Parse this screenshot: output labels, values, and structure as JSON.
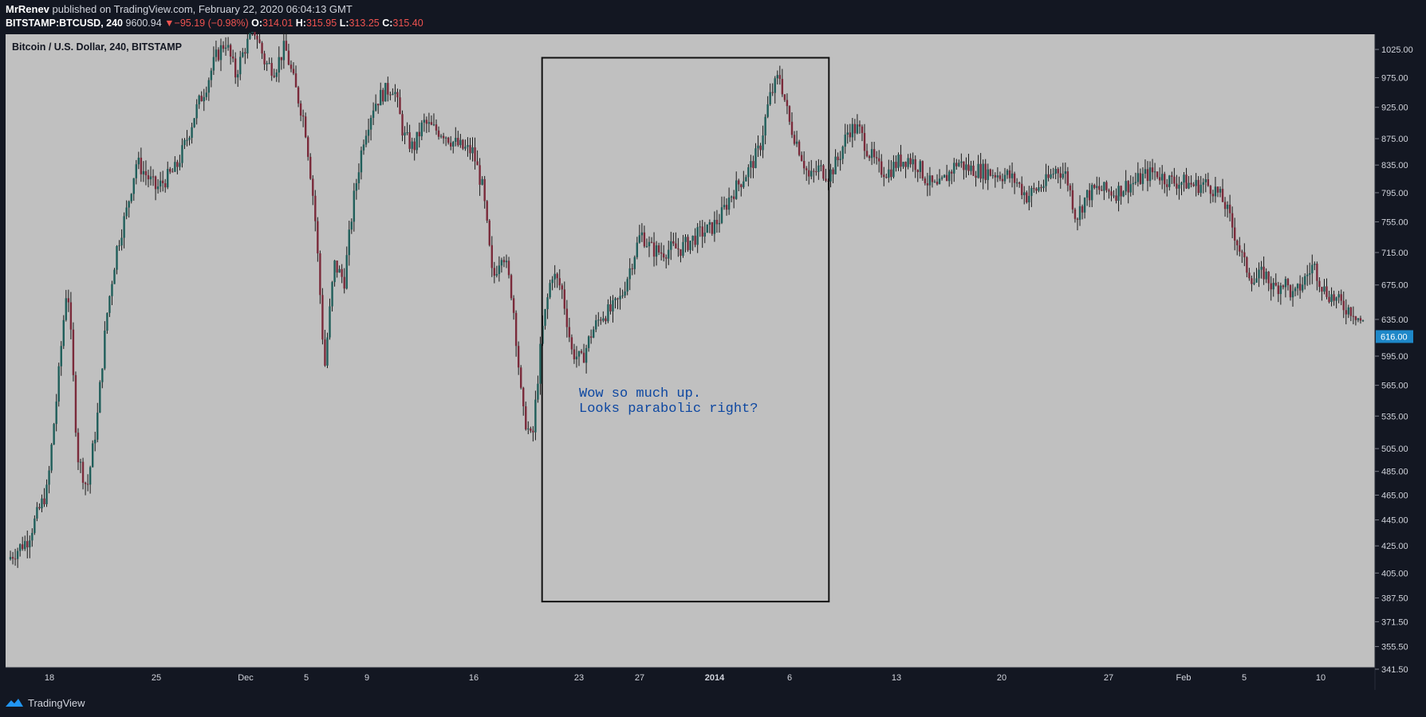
{
  "header": {
    "author": "MrRenev",
    "published_text": "published on TradingView.com, February 22, 2020 06:04:13 GMT",
    "symbol": "BITSTAMP:BTCUSD, 240",
    "last_price": "9600.94",
    "change_arrow": "▼",
    "change": "−95.19 (−0.98%)",
    "o_label": "O:",
    "o_value": "314.01",
    "h_label": "H:",
    "h_value": "315.95",
    "l_label": "L:",
    "l_value": "313.25",
    "c_label": "C:",
    "c_value": "315.40"
  },
  "footer": {
    "brand": "TradingView"
  },
  "colors": {
    "page_bg": "#131722",
    "plot_bg": "#c0c0c0",
    "candle_up": "#1f5e5a",
    "candle_down": "#7a2a3a",
    "wick": "#1a1a1a",
    "annotation_text": "#0d47a1",
    "price_tag_bg": "#1e88c9"
  },
  "chart_data": {
    "type": "candlestick",
    "title": "Bitcoin / U.S. Dollar, 240, BITSTAMP",
    "xlabel": "",
    "ylabel": "",
    "price_scale": "log",
    "ylim": [
      341.5,
      1050
    ],
    "grid": false,
    "x_ticks": [
      "18",
      "25",
      "Dec",
      "5",
      "9",
      "16",
      "23",
      "27",
      "2014",
      "6",
      "13",
      "20",
      "27",
      "Feb",
      "5",
      "10"
    ],
    "y_ticks": [
      "1025.00",
      "975.00",
      "925.00",
      "875.00",
      "835.00",
      "795.00",
      "755.00",
      "715.00",
      "675.00",
      "635.00",
      "595.00",
      "565.00",
      "535.00",
      "505.00",
      "485.00",
      "465.00",
      "445.00",
      "425.00",
      "405.00",
      "387.50",
      "371.50",
      "355.50",
      "341.50"
    ],
    "current_price_tag": "616.00",
    "price_path": [
      [
        0,
        415
      ],
      [
        2,
        430
      ],
      [
        4,
        470
      ],
      [
        5,
        560
      ],
      [
        6,
        680
      ],
      [
        7,
        500
      ],
      [
        8,
        470
      ],
      [
        9,
        530
      ],
      [
        10,
        640
      ],
      [
        11,
        720
      ],
      [
        12,
        770
      ],
      [
        13,
        840
      ],
      [
        15,
        800
      ],
      [
        17,
        830
      ],
      [
        18,
        870
      ],
      [
        19,
        920
      ],
      [
        20,
        960
      ],
      [
        21,
        1010
      ],
      [
        22,
        1040
      ],
      [
        23,
        980
      ],
      [
        24,
        1030
      ],
      [
        25,
        1060
      ],
      [
        26,
        1000
      ],
      [
        27,
        990
      ],
      [
        28,
        1030
      ],
      [
        29,
        960
      ],
      [
        30,
        900
      ],
      [
        31,
        770
      ],
      [
        32,
        580
      ],
      [
        33,
        700
      ],
      [
        34,
        680
      ],
      [
        35,
        790
      ],
      [
        36,
        880
      ],
      [
        37,
        930
      ],
      [
        38,
        950
      ],
      [
        39,
        960
      ],
      [
        40,
        880
      ],
      [
        41,
        860
      ],
      [
        42,
        900
      ],
      [
        43,
        890
      ],
      [
        44,
        885
      ],
      [
        45,
        870
      ],
      [
        46,
        860
      ],
      [
        47,
        855
      ],
      [
        48,
        800
      ],
      [
        49,
        680
      ],
      [
        50,
        720
      ],
      [
        51,
        660
      ],
      [
        52,
        540
      ],
      [
        53,
        510
      ],
      [
        54,
        620
      ],
      [
        55,
        690
      ],
      [
        56,
        670
      ],
      [
        57,
        600
      ],
      [
        58,
        590
      ],
      [
        59,
        620
      ],
      [
        60,
        640
      ],
      [
        61,
        645
      ],
      [
        62,
        660
      ],
      [
        63,
        700
      ],
      [
        64,
        740
      ],
      [
        65,
        720
      ],
      [
        66,
        715
      ],
      [
        67,
        720
      ],
      [
        68,
        720
      ],
      [
        69,
        730
      ],
      [
        70,
        740
      ],
      [
        71,
        745
      ],
      [
        72,
        760
      ],
      [
        73,
        790
      ],
      [
        74,
        810
      ],
      [
        75,
        830
      ],
      [
        76,
        860
      ],
      [
        77,
        940
      ],
      [
        78,
        980
      ],
      [
        79,
        900
      ],
      [
        80,
        860
      ],
      [
        81,
        815
      ],
      [
        82,
        830
      ],
      [
        83,
        820
      ],
      [
        84,
        845
      ],
      [
        85,
        890
      ],
      [
        86,
        890
      ],
      [
        87,
        855
      ],
      [
        88,
        830
      ],
      [
        89,
        825
      ],
      [
        90,
        840
      ],
      [
        91,
        845
      ],
      [
        92,
        835
      ],
      [
        93,
        810
      ],
      [
        94,
        800
      ],
      [
        95,
        820
      ],
      [
        96,
        840
      ],
      [
        97,
        830
      ],
      [
        98,
        828
      ],
      [
        99,
        825
      ],
      [
        100,
        822
      ],
      [
        101,
        820
      ],
      [
        102,
        810
      ],
      [
        103,
        790
      ],
      [
        104,
        800
      ],
      [
        105,
        810
      ],
      [
        106,
        830
      ],
      [
        107,
        820
      ],
      [
        108,
        760
      ],
      [
        109,
        790
      ],
      [
        110,
        800
      ],
      [
        111,
        798
      ],
      [
        112,
        795
      ],
      [
        113,
        805
      ],
      [
        114,
        810
      ],
      [
        115,
        820
      ],
      [
        116,
        825
      ],
      [
        117,
        815
      ],
      [
        118,
        810
      ],
      [
        119,
        810
      ],
      [
        120,
        805
      ],
      [
        121,
        808
      ],
      [
        122,
        800
      ],
      [
        123,
        780
      ],
      [
        124,
        740
      ],
      [
        125,
        700
      ],
      [
        126,
        680
      ],
      [
        127,
        690
      ],
      [
        128,
        670
      ],
      [
        129,
        680
      ],
      [
        130,
        660
      ],
      [
        131,
        680
      ],
      [
        132,
        700
      ],
      [
        133,
        670
      ],
      [
        134,
        660
      ],
      [
        135,
        650
      ],
      [
        136,
        645
      ],
      [
        137,
        630
      ]
    ],
    "annotations": [
      {
        "type": "rectangle",
        "x_range": [
          54,
          83
        ],
        "y_range": [
          385,
          1010
        ]
      },
      {
        "type": "text",
        "lines": [
          "Wow so much up.",
          "Looks parabolic right?"
        ]
      }
    ]
  }
}
